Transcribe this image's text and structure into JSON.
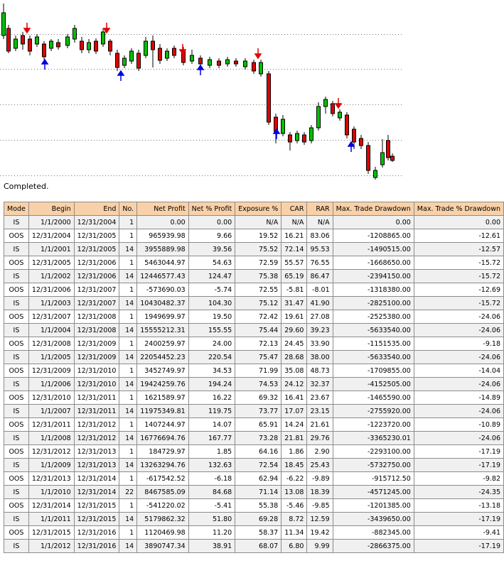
{
  "status": "Completed.",
  "table": {
    "header": [
      "Mode",
      "Begin",
      "End",
      "No.",
      "Net Profit",
      "Net % Profit",
      "Exposure %",
      "CAR",
      "RAR",
      "Max. Trade Drawdown",
      "Max. Trade % Drawdown"
    ],
    "rows": [
      [
        "IS",
        "1/1/2000",
        "12/31/2004",
        "1",
        "0.00",
        "0.00",
        "N/A",
        "N/A",
        "N/A",
        "0.00",
        "0.00"
      ],
      [
        "OOS",
        "12/31/2004",
        "12/31/2005",
        "1",
        "965939.98",
        "9.66",
        "19.52",
        "16.21",
        "83.06",
        "-1208865.00",
        "-12.61"
      ],
      [
        "IS",
        "1/1/2001",
        "12/31/2005",
        "14",
        "3955889.98",
        "39.56",
        "75.52",
        "72.14",
        "95.53",
        "-1490515.00",
        "-12.57"
      ],
      [
        "OOS",
        "12/31/2005",
        "12/31/2006",
        "1",
        "5463044.97",
        "54.63",
        "72.59",
        "55.57",
        "76.55",
        "-1668650.00",
        "-15.72"
      ],
      [
        "IS",
        "1/1/2002",
        "12/31/2006",
        "14",
        "12446577.43",
        "124.47",
        "75.38",
        "65.19",
        "86.47",
        "-2394150.00",
        "-15.72"
      ],
      [
        "OOS",
        "12/31/2006",
        "12/31/2007",
        "1",
        "-573690.03",
        "-5.74",
        "72.55",
        "-5.81",
        "-8.01",
        "-1318380.00",
        "-12.69"
      ],
      [
        "IS",
        "1/1/2003",
        "12/31/2007",
        "14",
        "10430482.37",
        "104.30",
        "75.12",
        "31.47",
        "41.90",
        "-2825100.00",
        "-15.72"
      ],
      [
        "OOS",
        "12/31/2007",
        "12/31/2008",
        "1",
        "1949699.97",
        "19.50",
        "72.42",
        "19.61",
        "27.08",
        "-2525380.00",
        "-24.06"
      ],
      [
        "IS",
        "1/1/2004",
        "12/31/2008",
        "14",
        "15555212.31",
        "155.55",
        "75.44",
        "29.60",
        "39.23",
        "-5633540.00",
        "-24.06"
      ],
      [
        "OOS",
        "12/31/2008",
        "12/31/2009",
        "1",
        "2400259.97",
        "24.00",
        "72.13",
        "24.45",
        "33.90",
        "-1151535.00",
        "-9.18"
      ],
      [
        "IS",
        "1/1/2005",
        "12/31/2009",
        "14",
        "22054452.23",
        "220.54",
        "75.47",
        "28.68",
        "38.00",
        "-5633540.00",
        "-24.06"
      ],
      [
        "OOS",
        "12/31/2009",
        "12/31/2010",
        "1",
        "3452749.97",
        "34.53",
        "71.99",
        "35.08",
        "48.73",
        "-1709855.00",
        "-14.04"
      ],
      [
        "IS",
        "1/1/2006",
        "12/31/2010",
        "14",
        "19424259.76",
        "194.24",
        "74.53",
        "24.12",
        "32.37",
        "-4152505.00",
        "-24.06"
      ],
      [
        "OOS",
        "12/31/2010",
        "12/31/2011",
        "1",
        "1621589.97",
        "16.22",
        "69.32",
        "16.41",
        "23.67",
        "-1465590.00",
        "-14.89"
      ],
      [
        "IS",
        "1/1/2007",
        "12/31/2011",
        "14",
        "11975349.81",
        "119.75",
        "73.77",
        "17.07",
        "23.15",
        "-2755920.00",
        "-24.06"
      ],
      [
        "OOS",
        "12/31/2011",
        "12/31/2012",
        "1",
        "1407244.97",
        "14.07",
        "65.91",
        "14.24",
        "21.61",
        "-1223720.00",
        "-10.89"
      ],
      [
        "IS",
        "1/1/2008",
        "12/31/2012",
        "14",
        "16776694.76",
        "167.77",
        "73.28",
        "21.81",
        "29.76",
        "-3365230.01",
        "-24.06"
      ],
      [
        "OOS",
        "12/31/2012",
        "12/31/2013",
        "1",
        "184729.97",
        "1.85",
        "64.16",
        "1.86",
        "2.90",
        "-2293100.00",
        "-17.19"
      ],
      [
        "IS",
        "1/1/2009",
        "12/31/2013",
        "14",
        "13263294.76",
        "132.63",
        "72.54",
        "18.45",
        "25.43",
        "-5732750.00",
        "-17.19"
      ],
      [
        "OOS",
        "12/31/2013",
        "12/31/2014",
        "1",
        "-617542.52",
        "-6.18",
        "62.94",
        "-6.22",
        "-9.89",
        "-915712.50",
        "-9.82"
      ],
      [
        "IS",
        "1/1/2010",
        "12/31/2014",
        "22",
        "8467585.09",
        "84.68",
        "71.14",
        "13.08",
        "18.39",
        "-4571245.00",
        "-24.35"
      ],
      [
        "OOS",
        "12/31/2014",
        "12/31/2015",
        "1",
        "-541220.02",
        "-5.41",
        "55.38",
        "-5.46",
        "-9.85",
        "-1201385.00",
        "-13.18"
      ],
      [
        "IS",
        "1/1/2011",
        "12/31/2015",
        "14",
        "5179862.32",
        "51.80",
        "69.28",
        "8.72",
        "12.59",
        "-3439650.00",
        "-17.19"
      ],
      [
        "OOS",
        "12/31/2015",
        "12/31/2016",
        "1",
        "1120469.98",
        "11.20",
        "58.37",
        "11.34",
        "19.42",
        "-882345.00",
        "-9.41"
      ],
      [
        "IS",
        "1/1/2012",
        "12/31/2016",
        "14",
        "3890747.34",
        "38.91",
        "68.07",
        "6.80",
        "9.99",
        "-2866375.00",
        "-17.19"
      ]
    ]
  }
}
